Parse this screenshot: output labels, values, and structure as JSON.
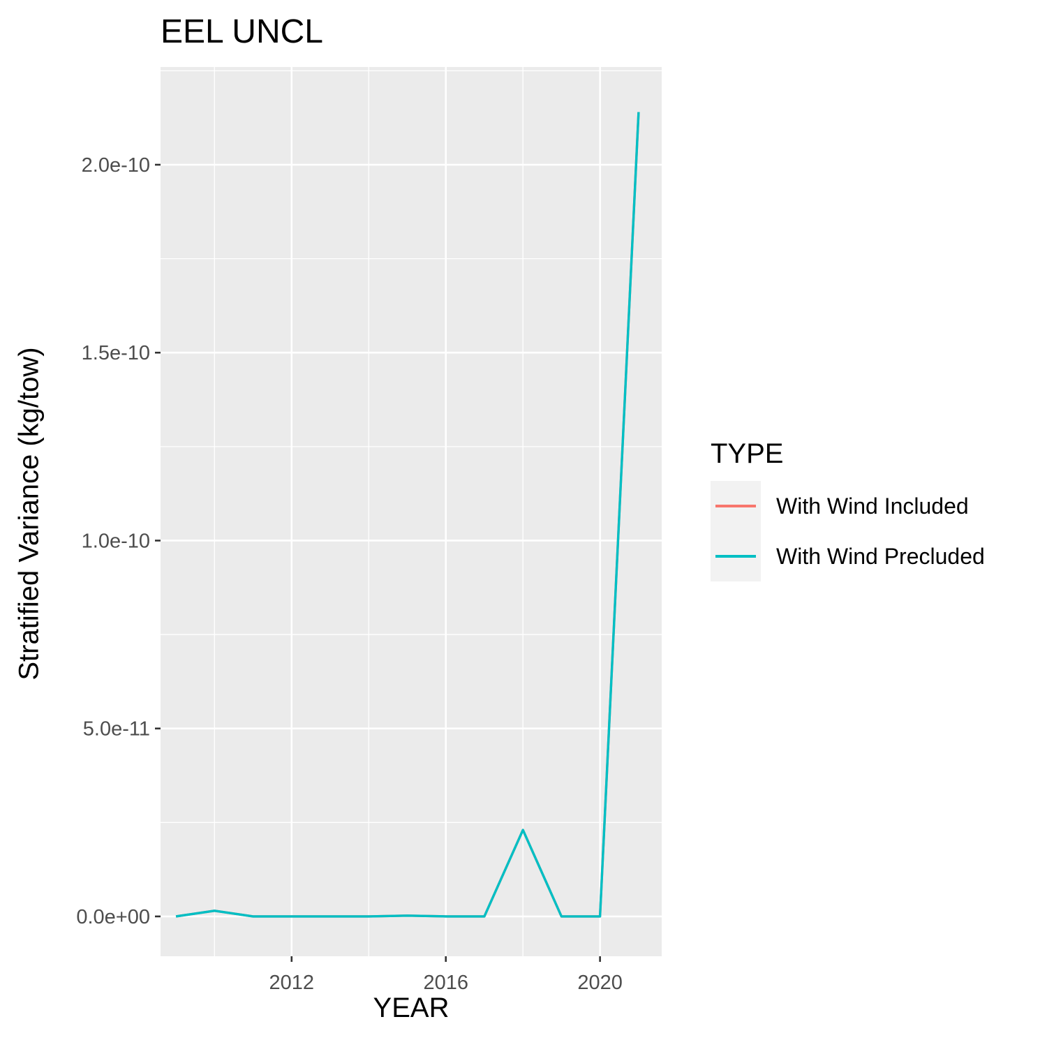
{
  "chart_data": {
    "type": "line",
    "title": "EEL UNCL",
    "xlabel": "YEAR",
    "ylabel": "Stratified Variance (kg/tow)",
    "xlim": [
      2008.6,
      2021.6
    ],
    "ylim": [
      -1.06e-11,
      2.26e-10
    ],
    "x_ticks": [
      2012,
      2016,
      2020
    ],
    "x_tick_labels": [
      "2012",
      "2016",
      "2020"
    ],
    "y_ticks": [
      0,
      5e-11,
      1e-10,
      1.5e-10,
      2e-10
    ],
    "y_tick_labels": [
      "0.0e+00",
      "5.0e-11",
      "1.0e-10",
      "1.5e-10",
      "2.0e-10"
    ],
    "grid": true,
    "panel_background": "#ebebeb",
    "legend": {
      "title": "TYPE",
      "position": "right",
      "entries": [
        "With Wind Included",
        "With Wind Precluded"
      ]
    },
    "series": [
      {
        "name": "With Wind Included",
        "color": "#f8766d",
        "x": [
          2009,
          2010,
          2011,
          2012,
          2013,
          2014,
          2015,
          2016,
          2017,
          2018,
          2019,
          2020,
          2021
        ],
        "y": [
          0,
          1.5e-12,
          0,
          0,
          0,
          0,
          2e-13,
          0,
          0,
          2.3e-11,
          0,
          0,
          2.14e-10
        ]
      },
      {
        "name": "With Wind Precluded",
        "color": "#00bfc4",
        "x": [
          2009,
          2010,
          2011,
          2012,
          2013,
          2014,
          2015,
          2016,
          2017,
          2018,
          2019,
          2020,
          2021
        ],
        "y": [
          0,
          1.5e-12,
          0,
          0,
          0,
          0,
          2e-13,
          0,
          0,
          2.3e-11,
          0,
          0,
          2.14e-10
        ]
      }
    ]
  }
}
